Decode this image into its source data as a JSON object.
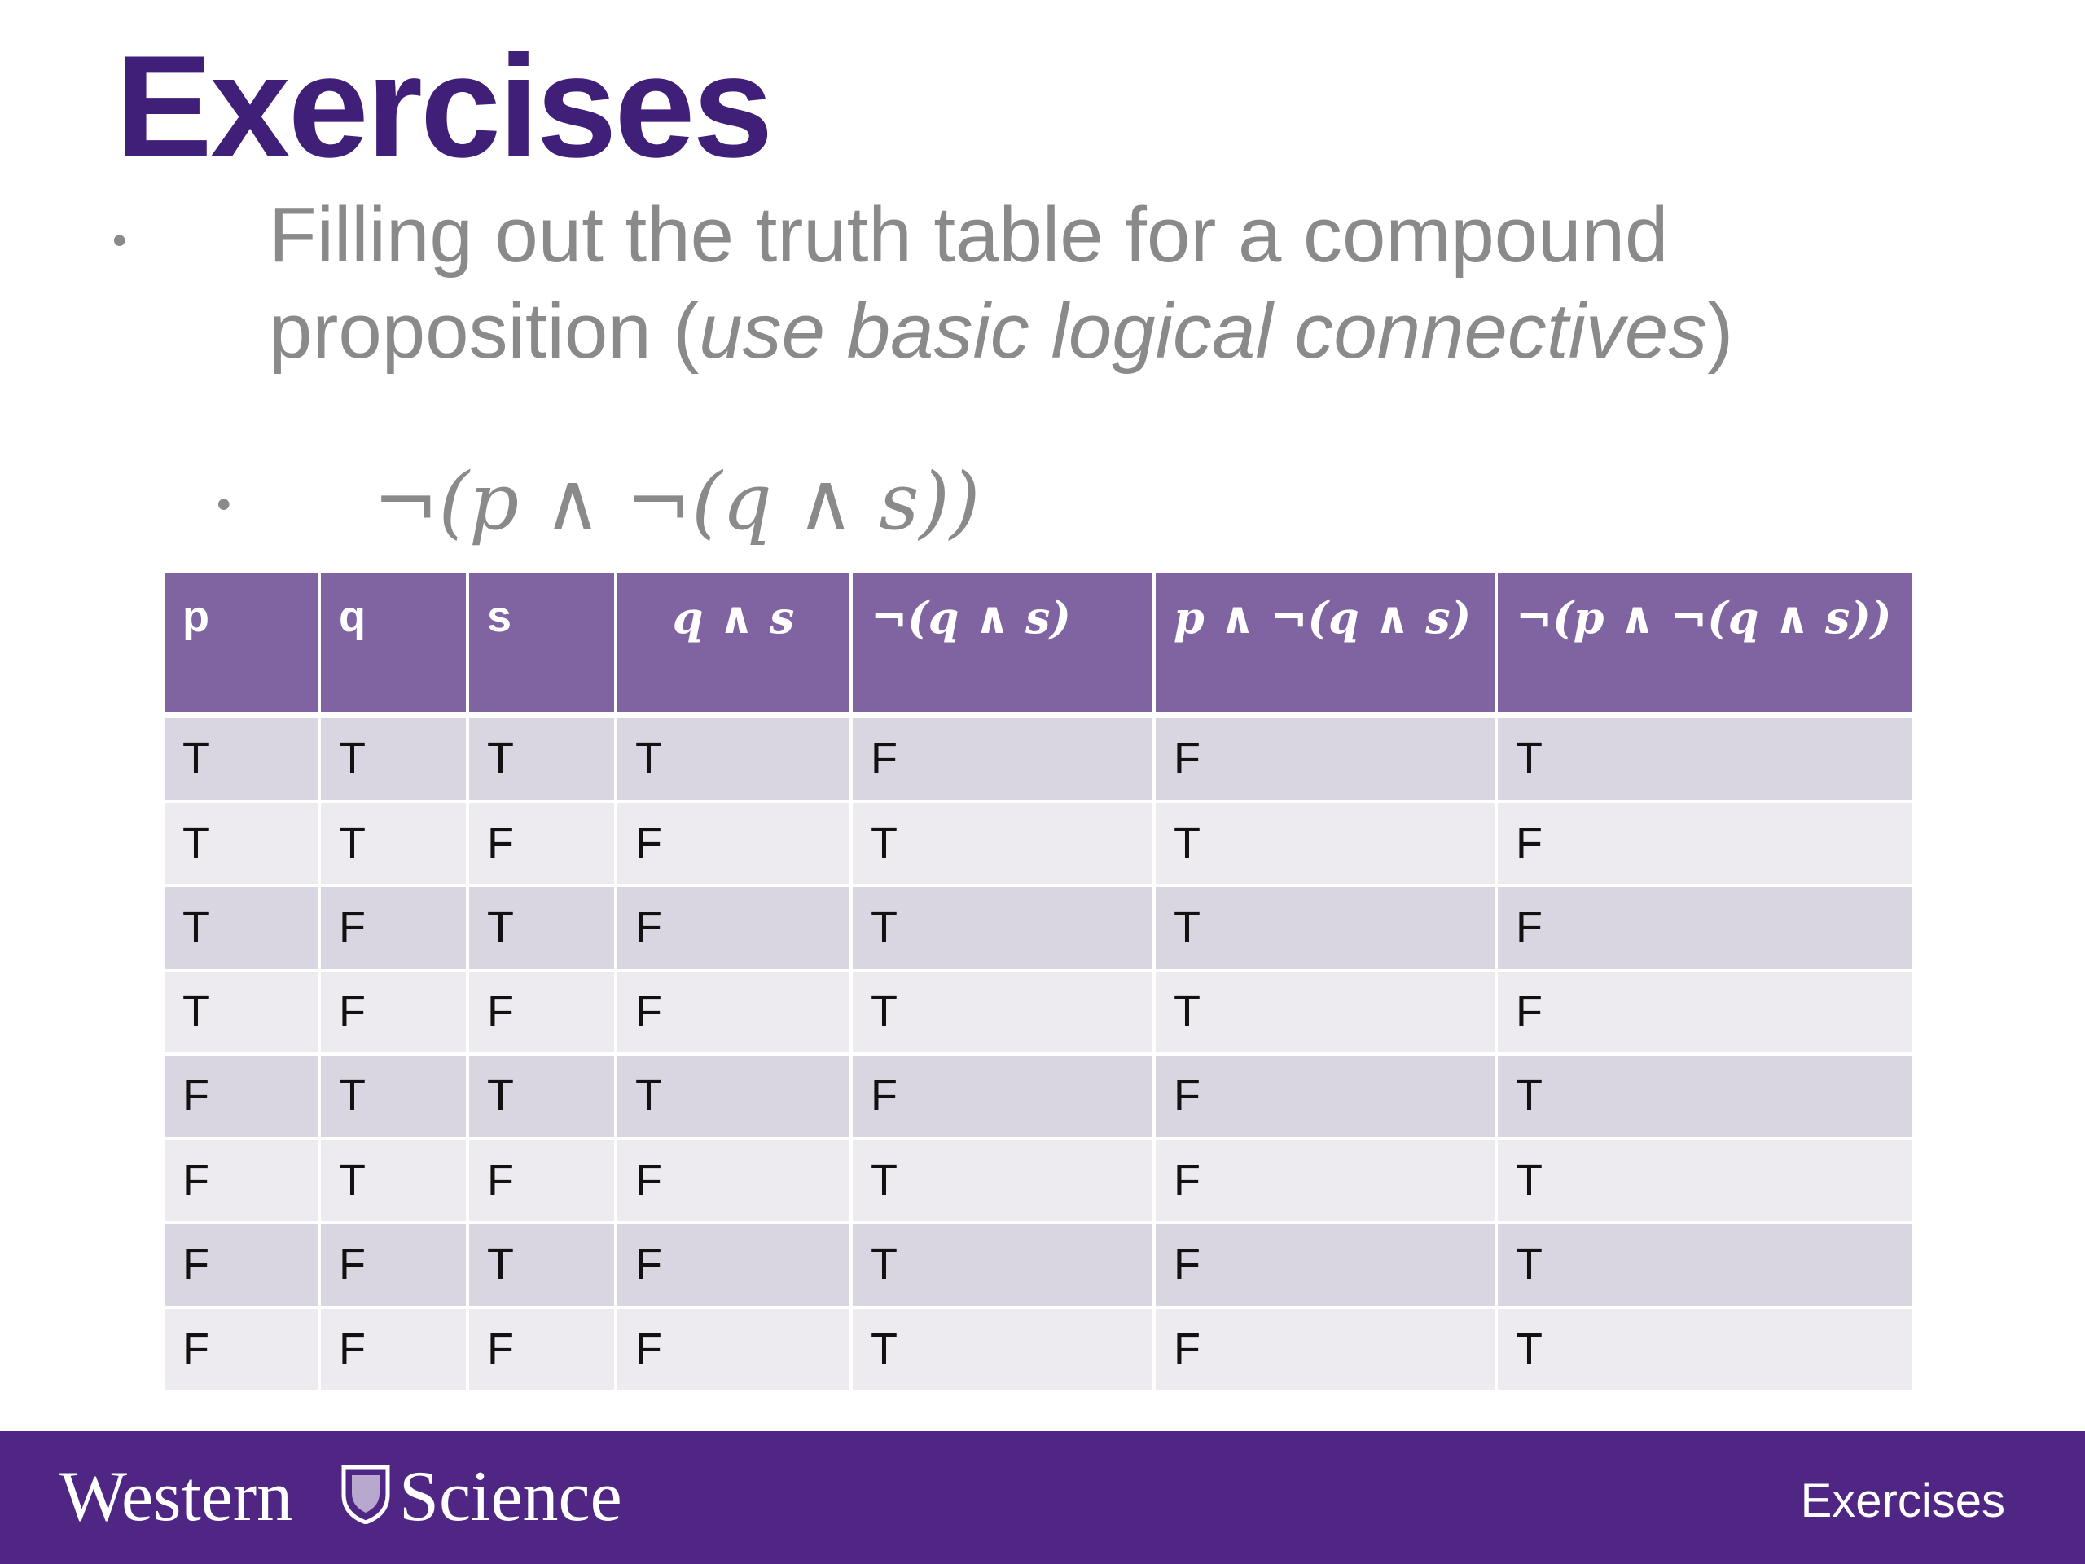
{
  "title": "Exercises",
  "bullets": [
    {
      "parts": [
        "Filling out the truth table for a compound proposition (",
        "use basic logical connectives",
        ")"
      ]
    },
    {
      "formula": "¬(p ∧ ¬(q ∧ s))"
    }
  ],
  "table": {
    "headers": [
      "p",
      "q",
      "s",
      "q ∧ s",
      "¬(q ∧ s)",
      "p ∧ ¬(q ∧ s)",
      "¬(p ∧ ¬(q ∧ s))"
    ],
    "rows": [
      [
        "T",
        "T",
        "T",
        "T",
        "F",
        "F",
        "T"
      ],
      [
        "T",
        "T",
        "F",
        "F",
        "T",
        "T",
        "F"
      ],
      [
        "T",
        "F",
        "T",
        "F",
        "T",
        "T",
        "F"
      ],
      [
        "T",
        "F",
        "F",
        "F",
        "T",
        "T",
        "F"
      ],
      [
        "F",
        "T",
        "T",
        "T",
        "F",
        "F",
        "T"
      ],
      [
        "F",
        "T",
        "F",
        "F",
        "T",
        "F",
        "T"
      ],
      [
        "F",
        "F",
        "T",
        "F",
        "T",
        "F",
        "T"
      ],
      [
        "F",
        "F",
        "F",
        "F",
        "T",
        "F",
        "T"
      ]
    ]
  },
  "footer": {
    "brand": [
      "Western",
      "Science"
    ],
    "label": "Exercises"
  }
}
